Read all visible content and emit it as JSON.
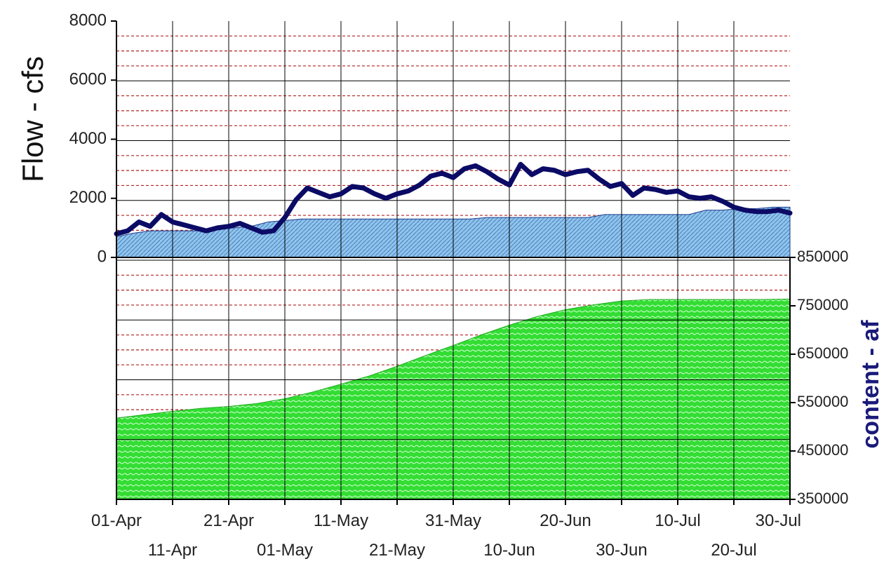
{
  "chart_data": {
    "type": "line",
    "ylabel": "Flow - cfs",
    "y2label": "content - af",
    "x_tick_labels_top_row": [
      "01-Apr",
      "21-Apr",
      "11-May",
      "31-May",
      "20-Jun",
      "10-Jul",
      "30-Jul"
    ],
    "x_tick_labels_bottom_row": [
      "11-Apr",
      "01-May",
      "21-May",
      "10-Jun",
      "30-Jun",
      "20-Jul"
    ],
    "y_ticks": [
      "0",
      "2000",
      "4000",
      "6000",
      "8000"
    ],
    "y2_ticks": [
      "350000",
      "450000",
      "550000",
      "650000",
      "750000",
      "850000"
    ],
    "ylim": [
      0,
      8000
    ],
    "y2lim": [
      350000,
      850000
    ],
    "grid": true,
    "colors": {
      "flow_line": "#0b0b66",
      "band_fill": "#8fc4ee",
      "content_fill": "#33dd33",
      "grid_major": "#000000",
      "grid_minor": "#b22222"
    },
    "series": [
      {
        "kind": "line",
        "axis": "left",
        "days": [
          0,
          2,
          4,
          6,
          8,
          10,
          12,
          14,
          16,
          18,
          20,
          22,
          24,
          26,
          28,
          30,
          32,
          34,
          36,
          38,
          40,
          42,
          44,
          46,
          48,
          50,
          52,
          54,
          56,
          58,
          60,
          62,
          64,
          66,
          68,
          70,
          72,
          74,
          76,
          78,
          80,
          82,
          84,
          86,
          88,
          90,
          92,
          94,
          96,
          98,
          100,
          102,
          104,
          106,
          108,
          110,
          112,
          114,
          116,
          118,
          120
        ],
        "values": [
          800,
          900,
          1200,
          1050,
          1450,
          1200,
          1100,
          1000,
          900,
          1000,
          1050,
          1150,
          1000,
          850,
          900,
          1350,
          1950,
          2350,
          2200,
          2050,
          2150,
          2400,
          2350,
          2150,
          2000,
          2150,
          2250,
          2450,
          2750,
          2850,
          2700,
          3000,
          3100,
          2900,
          2650,
          2450,
          3150,
          2800,
          3000,
          2950,
          2800,
          2900,
          2950,
          2650,
          2400,
          2500,
          2100,
          2350,
          2300,
          2200,
          2250,
          2050,
          2000,
          2050,
          1900,
          1700,
          1600,
          1550,
          1550,
          1600,
          1500
        ]
      },
      {
        "kind": "area",
        "axis": "left",
        "days": [
          0,
          3,
          6,
          9,
          12,
          15,
          18,
          21,
          24,
          27,
          30,
          33,
          36,
          39,
          42,
          45,
          48,
          51,
          54,
          57,
          60,
          63,
          66,
          69,
          72,
          75,
          78,
          81,
          84,
          87,
          90,
          93,
          96,
          99,
          102,
          105,
          108,
          111,
          114,
          117,
          120
        ],
        "values": [
          700,
          820,
          900,
          900,
          900,
          900,
          950,
          1000,
          1050,
          1200,
          1250,
          1300,
          1300,
          1300,
          1300,
          1300,
          1300,
          1300,
          1300,
          1300,
          1300,
          1300,
          1350,
          1350,
          1350,
          1350,
          1350,
          1350,
          1350,
          1450,
          1450,
          1450,
          1450,
          1450,
          1450,
          1600,
          1600,
          1650,
          1650,
          1700,
          1700
        ]
      },
      {
        "kind": "area",
        "axis": "right",
        "days": [
          0,
          5,
          10,
          15,
          20,
          25,
          30,
          35,
          40,
          45,
          50,
          55,
          60,
          65,
          70,
          75,
          80,
          85,
          90,
          95,
          100,
          105,
          110,
          115,
          120
        ],
        "values": [
          518000,
          525000,
          532000,
          538000,
          542000,
          548000,
          558000,
          572000,
          588000,
          605000,
          625000,
          647000,
          668000,
          690000,
          710000,
          728000,
          742000,
          752000,
          760000,
          763000,
          763000,
          763000,
          763000,
          763000,
          764000
        ]
      }
    ]
  }
}
